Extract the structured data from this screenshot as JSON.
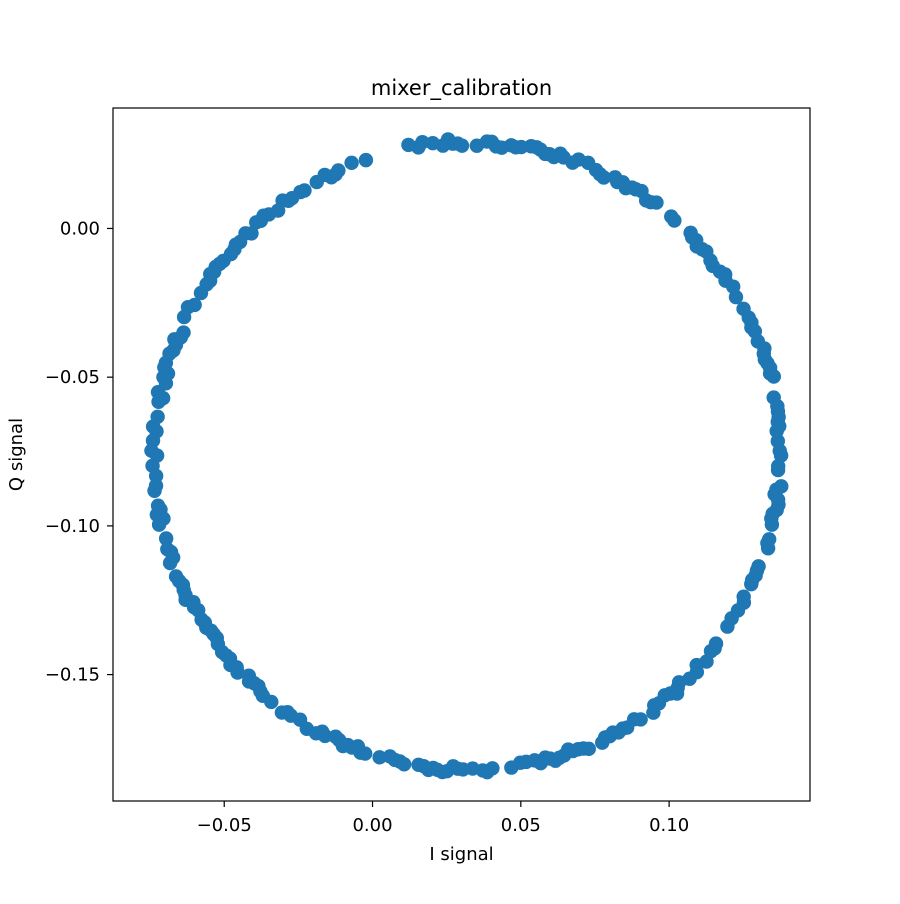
{
  "chart_data": {
    "type": "scatter",
    "title": "mixer_calibration",
    "xlabel": "I signal",
    "ylabel": "Q signal",
    "xlim": [
      -0.0875,
      0.1475
    ],
    "ylim": [
      -0.1925,
      0.0405
    ],
    "xticks": [
      -0.05,
      0.0,
      0.05,
      0.1
    ],
    "xtick_labels": [
      "−0.05",
      "0.00",
      "0.05",
      "0.10"
    ],
    "yticks": [
      0.0,
      -0.05,
      -0.1,
      -0.15
    ],
    "ytick_labels": [
      "0.00",
      "−0.05",
      "−0.10",
      "−0.15"
    ],
    "grid": false,
    "legend": "none",
    "marker_color": "#1f77b4",
    "shape": {
      "kind": "noisy-circle",
      "center": [
        0.032,
        -0.0765
      ],
      "radius": 0.1055,
      "n_points": 400,
      "noise": 0.0012,
      "gap_fraction": 0.3
    }
  }
}
